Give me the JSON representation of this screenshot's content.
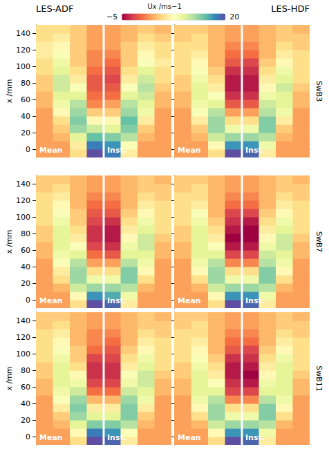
{
  "columns": [
    "LES-ADF",
    "LES-HDF"
  ],
  "rows": [
    "SwB3",
    "SwB7",
    "SwB11"
  ],
  "colorbar": {
    "label": "Ux /ms−1",
    "range": [
      -5,
      20
    ],
    "ticks": [
      {
        "value": -5,
        "label": "−5"
      },
      20
    ]
  },
  "chart_data": [
    {
      "type": "heatmap",
      "panels": [
        "Mean",
        "Inst."
      ],
      "y_label": "x /mm",
      "tick_labels": "y",
      "ylim": [
        -10,
        150
      ],
      "yticks": [
        0,
        20,
        40,
        60,
        80,
        100,
        120,
        140
      ],
      "y_bins": [
        -10,
        0,
        10,
        20,
        30,
        40,
        50,
        60,
        70,
        80,
        90,
        100,
        110,
        120,
        130,
        140,
        150
      ],
      "cells": [
        [
          2,
          2,
          5,
          20,
          18,
          6,
          2,
          2
        ],
        [
          2,
          2,
          6,
          18,
          17,
          8,
          2,
          2
        ],
        [
          2,
          3,
          10,
          15,
          14,
          12,
          3,
          2
        ],
        [
          2,
          4,
          13,
          11,
          10,
          14,
          4,
          2
        ],
        [
          2,
          5,
          14,
          7,
          7,
          15,
          6,
          2
        ],
        [
          2,
          7,
          13,
          4,
          4,
          13,
          9,
          2
        ],
        [
          3,
          9,
          12,
          1,
          2,
          12,
          10,
          3
        ],
        [
          3,
          10,
          10,
          0,
          0,
          10,
          11,
          3
        ],
        [
          4,
          11,
          8,
          -1,
          -1,
          8,
          12,
          4
        ],
        [
          4,
          11,
          6,
          -1,
          -2,
          6,
          11,
          5
        ],
        [
          5,
          10,
          5,
          0,
          -1,
          5,
          10,
          5
        ],
        [
          5,
          9,
          4,
          1,
          0,
          4,
          8,
          6
        ],
        [
          6,
          8,
          4,
          1,
          1,
          4,
          7,
          5
        ],
        [
          6,
          7,
          4,
          2,
          2,
          4,
          6,
          5
        ],
        [
          5,
          6,
          4,
          2,
          2,
          3,
          5,
          4
        ],
        [
          5,
          5,
          4,
          2,
          2,
          3,
          4,
          3
        ]
      ]
    },
    {
      "type": "heatmap",
      "panels": [
        "Mean",
        "Inst."
      ],
      "tick_labels": false,
      "ylim": [
        -10,
        150
      ],
      "yticks": [
        0,
        20,
        40,
        60,
        80,
        100,
        120,
        140
      ],
      "y_bins": [
        -10,
        0,
        10,
        20,
        30,
        40,
        50,
        60,
        70,
        80,
        90,
        100,
        110,
        120,
        130,
        140,
        150
      ],
      "cells": [
        [
          2,
          2,
          5,
          20,
          19,
          6,
          2,
          2
        ],
        [
          2,
          2,
          7,
          17,
          17,
          9,
          2,
          2
        ],
        [
          2,
          3,
          11,
          13,
          13,
          12,
          3,
          2
        ],
        [
          2,
          4,
          13,
          9,
          9,
          14,
          4,
          2
        ],
        [
          2,
          6,
          13,
          5,
          5,
          14,
          6,
          2
        ],
        [
          2,
          8,
          12,
          2,
          2,
          12,
          9,
          2
        ],
        [
          3,
          9,
          10,
          -1,
          -1,
          11,
          10,
          3
        ],
        [
          3,
          10,
          8,
          -3,
          -3,
          9,
          10,
          3
        ],
        [
          4,
          10,
          6,
          -4,
          -4,
          7,
          11,
          4
        ],
        [
          4,
          9,
          5,
          -4,
          -4,
          6,
          10,
          5
        ],
        [
          5,
          8,
          4,
          -3,
          -3,
          5,
          9,
          5
        ],
        [
          5,
          7,
          3,
          -1,
          -2,
          4,
          7,
          5
        ],
        [
          5,
          6,
          3,
          0,
          0,
          3,
          6,
          5
        ],
        [
          5,
          5,
          3,
          1,
          1,
          3,
          5,
          4
        ],
        [
          4,
          5,
          3,
          2,
          2,
          3,
          4,
          4
        ],
        [
          4,
          4,
          3,
          2,
          2,
          3,
          4,
          3
        ]
      ]
    },
    {
      "type": "heatmap",
      "panels": [
        "Mean",
        "Inst."
      ],
      "y_label": "x /mm",
      "tick_labels": "y",
      "ylim": [
        -10,
        150
      ],
      "yticks": [
        0,
        20,
        40,
        60,
        80,
        100,
        120,
        140
      ],
      "y_bins": [
        -10,
        0,
        10,
        20,
        30,
        40,
        50,
        60,
        70,
        80,
        90,
        100,
        110,
        120,
        130,
        140,
        150
      ],
      "cells": [
        [
          2,
          2,
          5,
          20,
          19,
          6,
          2,
          2
        ],
        [
          2,
          2,
          7,
          17,
          16,
          9,
          2,
          2
        ],
        [
          2,
          3,
          11,
          13,
          13,
          12,
          3,
          2
        ],
        [
          2,
          5,
          13,
          9,
          9,
          14,
          5,
          2
        ],
        [
          2,
          6,
          13,
          5,
          5,
          14,
          7,
          2
        ],
        [
          2,
          8,
          12,
          2,
          2,
          12,
          9,
          2
        ],
        [
          3,
          9,
          10,
          0,
          -1,
          10,
          10,
          3
        ],
        [
          3,
          10,
          8,
          -2,
          -3,
          9,
          11,
          3
        ],
        [
          4,
          10,
          6,
          -3,
          -4,
          7,
          11,
          4
        ],
        [
          4,
          10,
          5,
          -3,
          -4,
          6,
          10,
          5
        ],
        [
          5,
          9,
          4,
          -2,
          -3,
          5,
          9,
          5
        ],
        [
          5,
          8,
          4,
          -1,
          -1,
          4,
          7,
          5
        ],
        [
          5,
          7,
          3,
          0,
          0,
          3,
          6,
          5
        ],
        [
          5,
          6,
          3,
          1,
          1,
          3,
          5,
          4
        ],
        [
          4,
          5,
          3,
          2,
          2,
          3,
          4,
          4
        ],
        [
          4,
          4,
          3,
          2,
          2,
          3,
          4,
          3
        ]
      ]
    },
    {
      "type": "heatmap",
      "panels": [
        "Mean",
        "Inst."
      ],
      "tick_labels": false,
      "ylim": [
        -10,
        150
      ],
      "yticks": [
        0,
        20,
        40,
        60,
        80,
        100,
        120,
        140
      ],
      "y_bins": [
        -10,
        0,
        10,
        20,
        30,
        40,
        50,
        60,
        70,
        80,
        90,
        100,
        110,
        120,
        130,
        140,
        150
      ],
      "cells": [
        [
          2,
          2,
          5,
          20,
          19,
          6,
          2,
          2
        ],
        [
          2,
          2,
          7,
          17,
          17,
          9,
          2,
          2
        ],
        [
          2,
          3,
          11,
          13,
          13,
          12,
          3,
          2
        ],
        [
          2,
          5,
          13,
          9,
          9,
          14,
          5,
          2
        ],
        [
          2,
          7,
          13,
          5,
          5,
          14,
          7,
          2
        ],
        [
          2,
          9,
          12,
          1,
          1,
          12,
          9,
          2
        ],
        [
          3,
          10,
          10,
          -2,
          -2,
          11,
          10,
          3
        ],
        [
          3,
          10,
          8,
          -4,
          -4,
          9,
          11,
          3
        ],
        [
          4,
          10,
          6,
          -5,
          -5,
          7,
          11,
          4
        ],
        [
          4,
          10,
          5,
          -4,
          -5,
          6,
          10,
          5
        ],
        [
          5,
          9,
          4,
          -3,
          -4,
          5,
          9,
          5
        ],
        [
          5,
          8,
          3,
          -2,
          -2,
          4,
          7,
          5
        ],
        [
          5,
          6,
          3,
          0,
          0,
          3,
          6,
          5
        ],
        [
          5,
          5,
          3,
          1,
          1,
          3,
          5,
          4
        ],
        [
          4,
          5,
          3,
          2,
          2,
          3,
          4,
          4
        ],
        [
          4,
          4,
          3,
          2,
          2,
          3,
          4,
          3
        ]
      ]
    },
    {
      "type": "heatmap",
      "panels": [
        "Mean",
        "Inst."
      ],
      "y_label": "x /mm",
      "tick_labels": "y",
      "ylim": [
        -10,
        150
      ],
      "yticks": [
        0,
        20,
        40,
        60,
        80,
        100,
        120,
        140
      ],
      "y_bins": [
        -10,
        0,
        10,
        20,
        30,
        40,
        50,
        60,
        70,
        80,
        90,
        100,
        110,
        120,
        130,
        140,
        150
      ],
      "cells": [
        [
          2,
          2,
          5,
          20,
          19,
          6,
          2,
          2
        ],
        [
          2,
          2,
          7,
          18,
          17,
          8,
          2,
          2
        ],
        [
          2,
          3,
          10,
          14,
          14,
          12,
          3,
          2
        ],
        [
          2,
          4,
          13,
          10,
          10,
          14,
          4,
          2
        ],
        [
          2,
          6,
          14,
          6,
          6,
          14,
          6,
          2
        ],
        [
          2,
          8,
          13,
          3,
          3,
          13,
          9,
          2
        ],
        [
          3,
          9,
          11,
          0,
          0,
          11,
          10,
          3
        ],
        [
          3,
          10,
          9,
          -2,
          -2,
          9,
          11,
          3
        ],
        [
          4,
          10,
          7,
          -3,
          -3,
          8,
          11,
          4
        ],
        [
          4,
          10,
          5,
          -3,
          -3,
          6,
          10,
          5
        ],
        [
          5,
          9,
          4,
          -2,
          -2,
          5,
          9,
          5
        ],
        [
          5,
          8,
          4,
          0,
          -1,
          4,
          7,
          5
        ],
        [
          5,
          7,
          3,
          1,
          0,
          3,
          6,
          5
        ],
        [
          5,
          6,
          3,
          1,
          1,
          3,
          5,
          4
        ],
        [
          4,
          5,
          3,
          2,
          2,
          3,
          4,
          4
        ],
        [
          4,
          4,
          3,
          2,
          2,
          3,
          4,
          3
        ]
      ]
    },
    {
      "type": "heatmap",
      "panels": [
        "Mean",
        "Inst."
      ],
      "tick_labels": false,
      "ylim": [
        -10,
        150
      ],
      "yticks": [
        0,
        20,
        40,
        60,
        80,
        100,
        120,
        140
      ],
      "y_bins": [
        -10,
        0,
        10,
        20,
        30,
        40,
        50,
        60,
        70,
        80,
        90,
        100,
        110,
        120,
        130,
        140,
        150
      ],
      "cells": [
        [
          2,
          2,
          5,
          20,
          19,
          6,
          2,
          2
        ],
        [
          2,
          2,
          7,
          17,
          17,
          9,
          2,
          2
        ],
        [
          2,
          3,
          11,
          13,
          13,
          12,
          3,
          2
        ],
        [
          2,
          5,
          13,
          9,
          9,
          14,
          5,
          2
        ],
        [
          2,
          7,
          13,
          5,
          5,
          14,
          7,
          2
        ],
        [
          2,
          9,
          12,
          1,
          1,
          12,
          9,
          2
        ],
        [
          3,
          10,
          10,
          -2,
          -2,
          10,
          10,
          3
        ],
        [
          3,
          10,
          8,
          -3,
          -4,
          9,
          10,
          3
        ],
        [
          4,
          10,
          6,
          -4,
          -5,
          7,
          10,
          4
        ],
        [
          4,
          9,
          5,
          -4,
          -4,
          6,
          10,
          5
        ],
        [
          5,
          8,
          4,
          -3,
          -3,
          5,
          9,
          5
        ],
        [
          5,
          7,
          3,
          -1,
          -2,
          4,
          7,
          5
        ],
        [
          5,
          6,
          3,
          0,
          0,
          3,
          6,
          5
        ],
        [
          5,
          5,
          3,
          1,
          1,
          3,
          5,
          4
        ],
        [
          4,
          5,
          3,
          2,
          2,
          3,
          4,
          4
        ],
        [
          4,
          4,
          3,
          2,
          2,
          3,
          4,
          3
        ]
      ]
    }
  ]
}
